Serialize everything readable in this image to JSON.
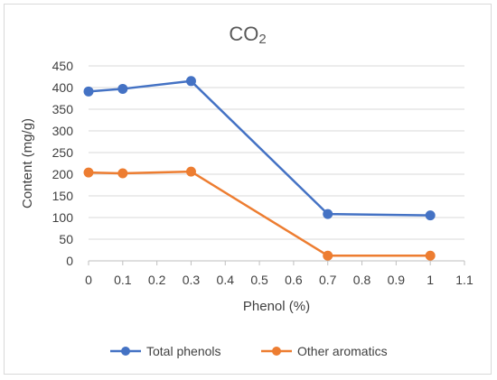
{
  "chart_data": {
    "type": "line",
    "title": "CO",
    "title_subscript": "2",
    "xlabel": "Phenol (%)",
    "ylabel": "Content (mg/g)",
    "xlim": [
      0,
      1.1
    ],
    "ylim": [
      0,
      450
    ],
    "x_ticks": [
      "0",
      "0.1",
      "0.2",
      "0.3",
      "0.4",
      "0.5",
      "0.6",
      "0.7",
      "0.8",
      "0.9",
      "1",
      "1.1"
    ],
    "y_ticks": [
      "0",
      "50",
      "100",
      "150",
      "200",
      "250",
      "300",
      "350",
      "400",
      "450"
    ],
    "grid": true,
    "legend_position": "bottom",
    "series": [
      {
        "name": "Total phenols",
        "color": "#4472c4",
        "x": [
          0,
          0.1,
          0.3,
          0.7,
          1
        ],
        "values": [
          391,
          397,
          415,
          108,
          105
        ]
      },
      {
        "name": "Other aromatics",
        "color": "#ed7d31",
        "x": [
          0,
          0.1,
          0.3,
          0.7,
          1
        ],
        "values": [
          204,
          202,
          206,
          12,
          12
        ]
      }
    ]
  }
}
